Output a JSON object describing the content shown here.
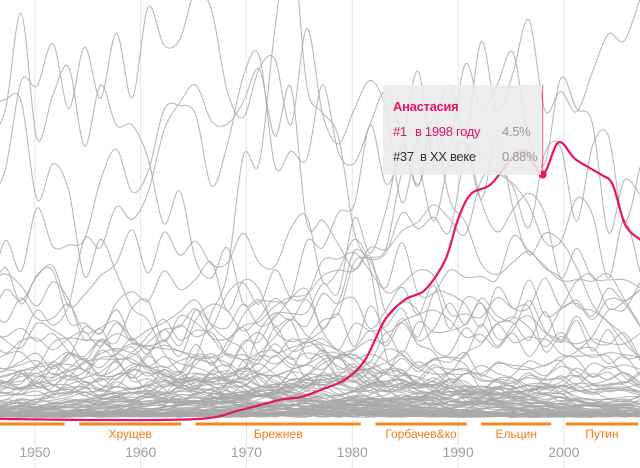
{
  "chart_data": {
    "type": "line",
    "title": "",
    "xlabel": "",
    "ylabel": "",
    "x_range": [
      1946.7,
      2007.2
    ],
    "y_range_percent": [
      0,
      7.7
    ],
    "grid": "vertical",
    "x_ticks": [
      1950,
      1960,
      1970,
      1980,
      1990,
      2000
    ],
    "x_tick_labels": [
      "1950",
      "1960",
      "1970",
      "1980",
      "1990",
      "2000"
    ],
    "eras": [
      {
        "label": "",
        "start": 1946.7,
        "end": 1953
      },
      {
        "label": "Хрущев",
        "start": 1954,
        "end": 1964
      },
      {
        "label": "Брежнев",
        "start": 1965,
        "end": 1981
      },
      {
        "label": "Горбачев&ко",
        "start": 1982,
        "end": 1991
      },
      {
        "label": "Ельцин",
        "start": 1992,
        "end": 1999
      },
      {
        "label": "Путин",
        "start": 2000,
        "end": 2007.2
      }
    ],
    "highlighted_series": {
      "name": "Анастасия",
      "unit": "%",
      "points": [
        [
          1946.7,
          0.02
        ],
        [
          1956.2,
          0.0
        ],
        [
          1965.6,
          0.02
        ],
        [
          1969.4,
          0.18
        ],
        [
          1973.2,
          0.37
        ],
        [
          1975.1,
          0.42
        ],
        [
          1977.0,
          0.55
        ],
        [
          1979.3,
          0.74
        ],
        [
          1981.2,
          1.1
        ],
        [
          1983.1,
          1.84
        ],
        [
          1985.0,
          2.21
        ],
        [
          1986.9,
          2.39
        ],
        [
          1988.8,
          2.94
        ],
        [
          1990.0,
          3.68
        ],
        [
          1991.2,
          4.14
        ],
        [
          1993.1,
          4.32
        ],
        [
          1995.0,
          4.78
        ],
        [
          1996.4,
          4.93
        ],
        [
          1998.0,
          4.5
        ],
        [
          1999.5,
          5.09
        ],
        [
          2001.1,
          4.78
        ],
        [
          2003.5,
          4.5
        ],
        [
          2004.6,
          4.32
        ],
        [
          2005.8,
          3.58
        ],
        [
          2007.2,
          3.31
        ]
      ],
      "selected_point": [
        1998,
        4.5
      ]
    },
    "background_series_count": 100,
    "background_series_note": "other names, unlabeled grey lines"
  },
  "tooltip": {
    "name": "Анастасия",
    "row1": {
      "rank": "#1",
      "desc": "в 1998 году",
      "value": "4.5%"
    },
    "row2": {
      "rank": "#37",
      "desc": "в XX веке",
      "value": "0.88%"
    }
  },
  "colors": {
    "highlight": "#e8136a",
    "era": "#f28a1e",
    "background_lines": "#a9a9a9",
    "tick_text": "#9a9fa3"
  }
}
